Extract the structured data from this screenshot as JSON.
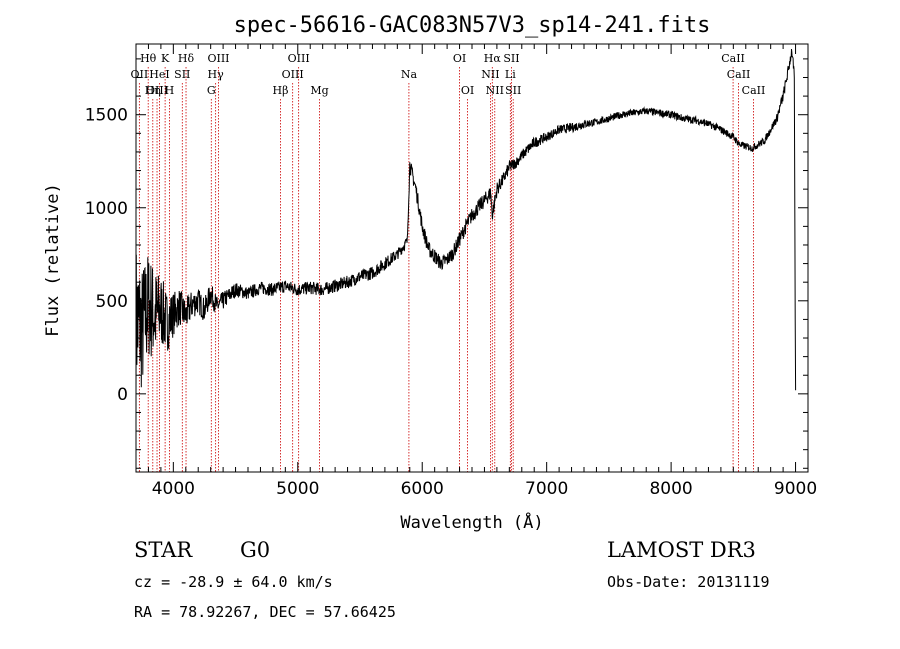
{
  "chart_data": {
    "type": "line",
    "title": "spec-56616-GAC083N57V3_sp14-241.fits",
    "xlabel": "Wavelength (Å)",
    "ylabel": "Flux (relative)",
    "xlim": [
      3700,
      9100
    ],
    "ylim": [
      -420,
      1880
    ],
    "x_ticks": [
      4000,
      5000,
      6000,
      7000,
      8000,
      9000
    ],
    "x_tick_labels": [
      "4000",
      "5000",
      "6000",
      "7000",
      "8000",
      "9000"
    ],
    "y_ticks": [
      0,
      500,
      1000,
      1500
    ],
    "y_tick_labels": [
      "0",
      "500",
      "1000",
      "1500"
    ],
    "series": [
      {
        "name": "flux",
        "x": [
          3700,
          3750,
          3800,
          3850,
          3900,
          3950,
          4000,
          4050,
          4100,
          4150,
          4200,
          4250,
          4300,
          4350,
          4400,
          4450,
          4500,
          4600,
          4700,
          4800,
          4900,
          5000,
          5100,
          5200,
          5300,
          5400,
          5500,
          5600,
          5700,
          5800,
          5880,
          5900,
          5920,
          5950,
          6000,
          6050,
          6100,
          6150,
          6200,
          6250,
          6300,
          6350,
          6400,
          6450,
          6500,
          6550,
          6563,
          6600,
          6650,
          6700,
          6750,
          6800,
          6900,
          7000,
          7100,
          7200,
          7300,
          7400,
          7500,
          7600,
          7700,
          7800,
          7900,
          8000,
          8100,
          8200,
          8300,
          8400,
          8500,
          8550,
          8600,
          8650,
          8700,
          8750,
          8800,
          8850,
          8900,
          8930,
          8950,
          8970,
          8990,
          9000
        ],
        "values": [
          400,
          350,
          480,
          420,
          450,
          380,
          430,
          470,
          420,
          480,
          500,
          450,
          540,
          470,
          500,
          530,
          560,
          540,
          570,
          560,
          580,
          560,
          570,
          560,
          580,
          600,
          630,
          650,
          700,
          750,
          820,
          1230,
          1180,
          1100,
          900,
          780,
          740,
          700,
          720,
          760,
          830,
          900,
          960,
          1000,
          1040,
          1080,
          960,
          1100,
          1150,
          1220,
          1240,
          1280,
          1350,
          1380,
          1420,
          1430,
          1450,
          1460,
          1480,
          1500,
          1510,
          1520,
          1510,
          1500,
          1480,
          1470,
          1450,
          1420,
          1380,
          1340,
          1330,
          1320,
          1340,
          1360,
          1420,
          1480,
          1600,
          1700,
          1770,
          1850,
          1700,
          0
        ],
        "noise": [
          420,
          350,
          300,
          260,
          200,
          160,
          120,
          100,
          90,
          80,
          70,
          65,
          60,
          55,
          50,
          45,
          40,
          35,
          35,
          35,
          35,
          35,
          35,
          35,
          35,
          35,
          35,
          35,
          35,
          30,
          30,
          40,
          40,
          40,
          40,
          40,
          40,
          40,
          40,
          40,
          40,
          40,
          40,
          40,
          40,
          40,
          40,
          40,
          35,
          35,
          30,
          30,
          30,
          25,
          25,
          25,
          25,
          20,
          20,
          20,
          20,
          20,
          20,
          20,
          20,
          20,
          20,
          20,
          20,
          20,
          20,
          20,
          20,
          20,
          20,
          25,
          30,
          30,
          30,
          30,
          30,
          30
        ]
      }
    ],
    "lines": [
      {
        "label": "Hθ",
        "wl": 3798,
        "row": 0
      },
      {
        "label": "K",
        "wl": 3934,
        "row": 0
      },
      {
        "label": "Hδ",
        "wl": 4102,
        "row": 0
      },
      {
        "label": "OIII",
        "wl": 4363,
        "row": 0
      },
      {
        "label": "OIII",
        "wl": 5007,
        "row": 0
      },
      {
        "label": "OI",
        "wl": 6300,
        "row": 0
      },
      {
        "label": "Hα",
        "wl": 6563,
        "row": 0
      },
      {
        "label": "SII",
        "wl": 6717,
        "row": 0
      },
      {
        "label": "CaII",
        "wl": 8498,
        "row": 0
      },
      {
        "label": "OII",
        "wl": 3727,
        "row": 1
      },
      {
        "label": "HeI",
        "wl": 3889,
        "row": 1
      },
      {
        "label": "SII",
        "wl": 4072,
        "row": 1
      },
      {
        "label": "Hγ",
        "wl": 4340,
        "row": 1
      },
      {
        "label": "OIII",
        "wl": 4959,
        "row": 1
      },
      {
        "label": "Na",
        "wl": 5893,
        "row": 1
      },
      {
        "label": "NII",
        "wl": 6548,
        "row": 1
      },
      {
        "label": "Li",
        "wl": 6708,
        "row": 1
      },
      {
        "label": "CaII",
        "wl": 8542,
        "row": 1
      },
      {
        "label": "OIII",
        "wl": 3869,
        "row": 2
      },
      {
        "label": "Hη",
        "wl": 3835,
        "row": 2
      },
      {
        "label": "H",
        "wl": 3969,
        "row": 2
      },
      {
        "label": "G",
        "wl": 4305,
        "row": 2
      },
      {
        "label": "Hβ",
        "wl": 4861,
        "row": 2
      },
      {
        "label": "Mg",
        "wl": 5175,
        "row": 2
      },
      {
        "label": "OI",
        "wl": 6364,
        "row": 2
      },
      {
        "label": "NII",
        "wl": 6583,
        "row": 2
      },
      {
        "label": "SII",
        "wl": 6731,
        "row": 2
      },
      {
        "label": "CaII",
        "wl": 8662,
        "row": 2
      }
    ],
    "line_color": "#cc0000"
  },
  "info": {
    "object_class": "STAR",
    "subclass": "G0",
    "survey": "LAMOST DR3",
    "cz": "cz = -28.9 ± 64.0 km/s",
    "obs_date": "Obs-Date: 20131119",
    "coords": "RA =  78.92267, DEC =  57.66425"
  }
}
